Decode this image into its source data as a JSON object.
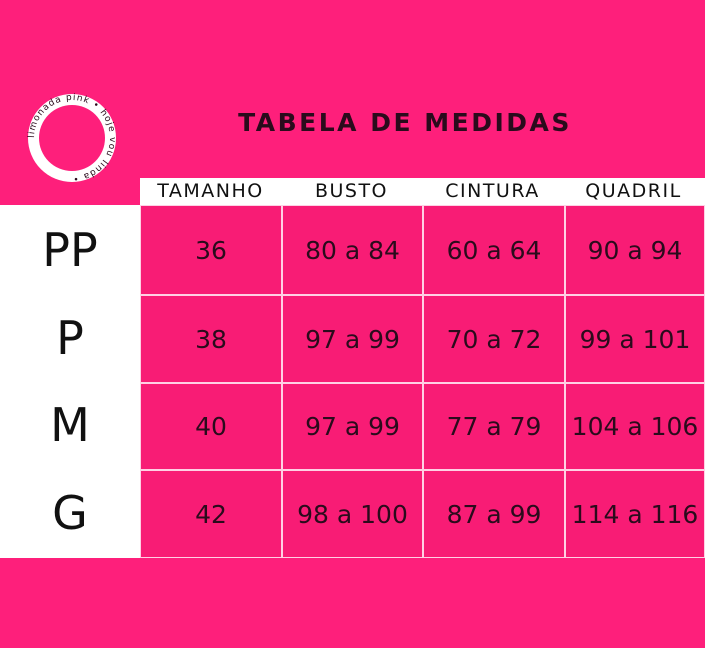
{
  "logo": {
    "text": "limonada pink • hoje vou linda •"
  },
  "title": "TABELA DE MEDIDAS",
  "columns": [
    "TAMANHO",
    "BUSTO",
    "CINTURA",
    "QUADRIL"
  ],
  "rows": [
    {
      "size": "PP",
      "cells": [
        "36",
        "80 a 84",
        "60 a 64",
        "90 a 94"
      ]
    },
    {
      "size": "P",
      "cells": [
        "38",
        "97 a 99",
        "70 a 72",
        "99 a 101"
      ]
    },
    {
      "size": "M",
      "cells": [
        "40",
        "97 a 99",
        "77 a 79",
        "104 a 106"
      ]
    },
    {
      "size": "G",
      "cells": [
        "42",
        "98 a 100",
        "87 a 99",
        "114 a 116"
      ]
    }
  ],
  "colors": {
    "background": "#fe1f7b",
    "cell": "#f81c75",
    "text": "#2a0b1c"
  }
}
